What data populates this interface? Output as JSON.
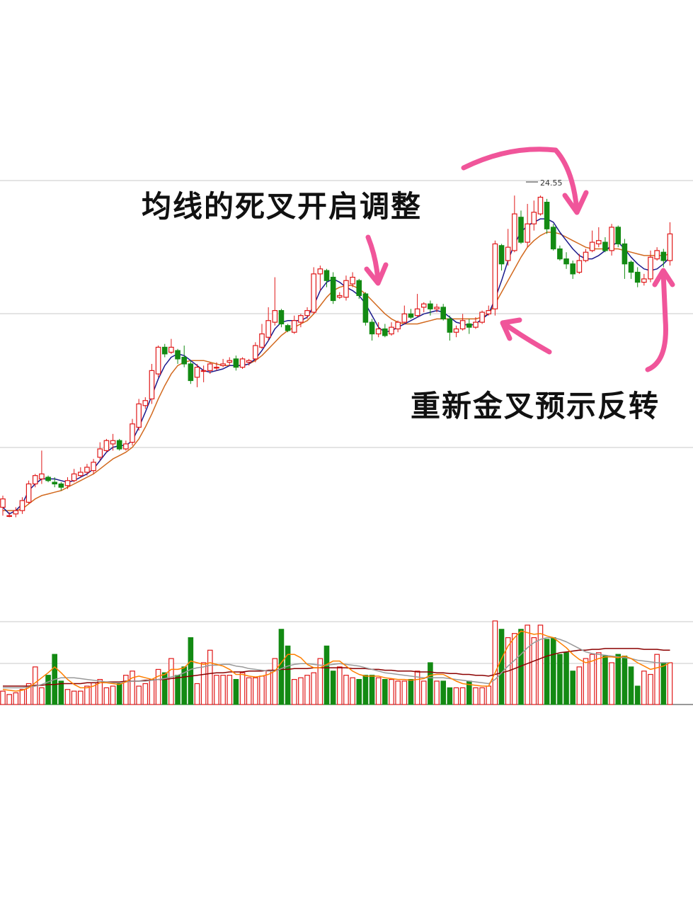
{
  "chart_data": {
    "type": "candlestick",
    "title": "",
    "peak_label": "24.55",
    "grid": true,
    "annotations": {
      "dead_cross": "均线的死叉开启调整",
      "golden_cross": "重新金叉预示反转"
    },
    "colors": {
      "up": "#e01818",
      "down": "#138a13",
      "ma_short": "#1a1a8c",
      "ma_long": "#d2691e",
      "vol_ma_1": "#ff7f00",
      "vol_ma_2": "#999999",
      "vol_ma_3": "#8b0000",
      "annotation_arrow": "#f0559a",
      "grid": "#c8c8c8"
    },
    "price_range": [
      13.0,
      25.0
    ],
    "candles": [
      [
        15.2,
        15.45,
        15.55,
        14.95
      ],
      [
        14.95,
        14.95,
        15.05,
        14.9
      ],
      [
        15.0,
        15.1,
        15.2,
        14.9
      ],
      [
        15.1,
        15.4,
        15.5,
        15.0
      ],
      [
        15.35,
        15.9,
        16.0,
        15.3
      ],
      [
        15.9,
        16.15,
        16.2,
        15.8
      ],
      [
        16.05,
        16.2,
        16.9,
        15.9
      ],
      [
        16.1,
        16.0,
        16.15,
        15.95
      ],
      [
        15.95,
        15.9,
        16.1,
        15.8
      ],
      [
        15.9,
        15.8,
        15.95,
        15.7
      ],
      [
        15.85,
        16.0,
        16.1,
        15.75
      ],
      [
        16.0,
        16.2,
        16.35,
        15.95
      ],
      [
        16.15,
        16.25,
        16.4,
        16.1
      ],
      [
        16.25,
        16.4,
        16.5,
        16.15
      ],
      [
        16.3,
        16.55,
        16.65,
        16.2
      ],
      [
        16.7,
        16.95,
        17.15,
        16.6
      ],
      [
        16.9,
        17.2,
        17.25,
        16.85
      ],
      [
        17.1,
        17.2,
        17.4,
        16.9
      ],
      [
        17.2,
        16.95,
        17.25,
        16.9
      ],
      [
        16.95,
        17.1,
        17.2,
        16.9
      ],
      [
        17.15,
        17.7,
        17.85,
        17.05
      ],
      [
        17.6,
        18.3,
        18.45,
        17.5
      ],
      [
        18.25,
        18.4,
        18.5,
        18.15
      ],
      [
        18.45,
        19.3,
        19.5,
        18.3
      ],
      [
        19.2,
        20.0,
        20.05,
        19.1
      ],
      [
        20.0,
        19.8,
        20.1,
        19.7
      ],
      [
        19.85,
        20.0,
        20.25,
        19.8
      ],
      [
        19.9,
        19.65,
        19.95,
        19.5
      ],
      [
        19.7,
        19.5,
        20.05,
        19.4
      ],
      [
        19.5,
        19.0,
        19.6,
        18.9
      ],
      [
        19.1,
        19.4,
        19.5,
        18.8
      ],
      [
        19.3,
        19.3,
        19.45,
        18.95
      ],
      [
        19.3,
        19.5,
        19.55,
        19.2
      ],
      [
        19.4,
        19.4,
        19.55,
        19.3
      ],
      [
        19.45,
        19.5,
        19.65,
        19.4
      ],
      [
        19.55,
        19.6,
        19.7,
        19.45
      ],
      [
        19.65,
        19.4,
        19.75,
        19.3
      ],
      [
        19.4,
        19.65,
        19.7,
        19.35
      ],
      [
        19.55,
        19.6,
        19.65,
        19.45
      ],
      [
        19.65,
        20.05,
        20.15,
        19.55
      ],
      [
        20.0,
        20.4,
        20.7,
        19.95
      ],
      [
        20.3,
        20.8,
        21.2,
        20.2
      ],
      [
        20.75,
        21.1,
        22.1,
        20.65
      ],
      [
        21.1,
        20.7,
        21.15,
        20.6
      ],
      [
        20.65,
        20.5,
        20.7,
        20.45
      ],
      [
        20.45,
        20.8,
        20.95,
        20.4
      ],
      [
        20.75,
        20.95,
        21.0,
        20.6
      ],
      [
        20.95,
        21.1,
        21.2,
        20.85
      ],
      [
        21.05,
        22.2,
        22.4,
        21.0
      ],
      [
        22.2,
        22.35,
        22.45,
        21.7
      ],
      [
        22.3,
        22.0,
        22.35,
        21.8
      ],
      [
        22.1,
        21.4,
        22.25,
        21.3
      ],
      [
        21.5,
        21.55,
        21.65,
        21.45
      ],
      [
        21.5,
        22.0,
        22.15,
        21.4
      ],
      [
        21.9,
        22.1,
        22.25,
        21.8
      ],
      [
        22.0,
        21.55,
        22.05,
        21.45
      ],
      [
        21.6,
        20.75,
        21.65,
        20.65
      ],
      [
        20.75,
        20.4,
        20.85,
        20.2
      ],
      [
        20.4,
        20.55,
        20.75,
        20.3
      ],
      [
        20.55,
        20.35,
        20.7,
        20.3
      ],
      [
        20.4,
        20.6,
        20.75,
        20.35
      ],
      [
        20.55,
        20.75,
        20.8,
        20.45
      ],
      [
        20.75,
        21.0,
        21.25,
        20.7
      ],
      [
        21.0,
        20.9,
        21.15,
        20.85
      ],
      [
        20.95,
        21.15,
        21.6,
        20.9
      ],
      [
        21.2,
        21.3,
        21.35,
        21.05
      ],
      [
        21.3,
        21.15,
        21.4,
        20.95
      ],
      [
        21.15,
        21.2,
        21.3,
        21.05
      ],
      [
        21.2,
        20.85,
        21.3,
        20.8
      ],
      [
        20.85,
        20.45,
        20.95,
        20.2
      ],
      [
        20.45,
        20.55,
        20.65,
        20.3
      ],
      [
        20.55,
        20.8,
        21.0,
        20.5
      ],
      [
        20.7,
        20.6,
        20.85,
        20.4
      ],
      [
        20.6,
        20.75,
        20.9,
        20.55
      ],
      [
        20.75,
        21.05,
        21.1,
        20.7
      ],
      [
        21.0,
        21.1,
        21.25,
        20.95
      ],
      [
        21.15,
        23.1,
        23.2,
        20.95
      ],
      [
        23.05,
        22.5,
        23.1,
        22.3
      ],
      [
        22.6,
        23.0,
        23.55,
        22.45
      ],
      [
        22.9,
        24.0,
        24.55,
        22.85
      ],
      [
        23.9,
        23.15,
        24.1,
        23.1
      ],
      [
        23.15,
        23.7,
        24.3,
        23.0
      ],
      [
        23.7,
        24.05,
        24.4,
        23.5
      ],
      [
        24.0,
        24.5,
        24.55,
        23.95
      ],
      [
        24.35,
        23.55,
        24.45,
        23.4
      ],
      [
        23.6,
        22.95,
        23.7,
        22.9
      ],
      [
        22.95,
        22.65,
        23.05,
        22.6
      ],
      [
        22.65,
        22.5,
        22.85,
        22.35
      ],
      [
        22.5,
        22.2,
        22.6,
        22.05
      ],
      [
        22.25,
        22.6,
        22.8,
        22.2
      ],
      [
        22.6,
        22.85,
        22.95,
        22.55
      ],
      [
        22.9,
        23.15,
        23.5,
        22.85
      ],
      [
        23.1,
        23.2,
        23.6,
        23.0
      ],
      [
        23.15,
        22.9,
        23.3,
        22.85
      ],
      [
        22.9,
        23.6,
        23.7,
        22.75
      ],
      [
        23.6,
        23.1,
        23.65,
        23.0
      ],
      [
        23.1,
        22.5,
        23.25,
        22.05
      ],
      [
        22.55,
        22.25,
        22.6,
        22.05
      ],
      [
        22.25,
        21.95,
        22.4,
        21.8
      ],
      [
        21.95,
        22.05,
        22.2,
        21.85
      ],
      [
        22.05,
        22.7,
        22.9,
        21.95
      ],
      [
        22.65,
        22.9,
        23.0,
        22.6
      ],
      [
        22.85,
        22.6,
        22.95,
        22.4
      ],
      [
        22.6,
        23.4,
        23.75,
        22.45
      ]
    ],
    "ma_short": [
      15.2,
      15.0,
      15.1,
      15.3,
      15.7,
      15.9,
      16.05,
      16.05,
      16.05,
      16.0,
      15.95,
      16.0,
      16.1,
      16.2,
      16.35,
      16.6,
      16.85,
      17.0,
      17.05,
      17.05,
      17.2,
      17.6,
      18.05,
      18.55,
      19.05,
      19.45,
      19.7,
      19.8,
      19.75,
      19.6,
      19.45,
      19.3,
      19.25,
      19.3,
      19.35,
      19.45,
      19.45,
      19.45,
      19.5,
      19.65,
      19.9,
      20.2,
      20.55,
      20.75,
      20.8,
      20.8,
      20.8,
      20.9,
      21.25,
      21.7,
      21.95,
      22.05,
      21.95,
      21.8,
      21.7,
      21.55,
      21.3,
      20.95,
      20.6,
      20.45,
      20.5,
      20.6,
      20.7,
      20.8,
      20.9,
      21.0,
      21.05,
      21.1,
      21.05,
      20.9,
      20.75,
      20.7,
      20.65,
      20.7,
      20.85,
      21.0,
      21.45,
      22.0,
      22.6,
      23.1,
      23.45,
      23.65,
      23.75,
      23.85,
      23.85,
      23.75,
      23.45,
      23.2,
      22.95,
      22.75,
      22.65,
      22.65,
      22.75,
      22.9,
      23.05,
      23.15,
      22.95,
      22.7,
      22.5,
      22.35,
      22.3,
      22.35,
      22.5,
      22.7
    ],
    "ma_long": [
      15.1,
      15.1,
      15.1,
      15.15,
      15.3,
      15.45,
      15.55,
      15.6,
      15.65,
      15.7,
      15.8,
      15.9,
      16.0,
      16.1,
      16.2,
      16.35,
      16.5,
      16.65,
      16.75,
      16.85,
      17.0,
      17.25,
      17.6,
      18.0,
      18.45,
      18.85,
      19.2,
      19.45,
      19.55,
      19.6,
      19.6,
      19.6,
      19.55,
      19.5,
      19.45,
      19.45,
      19.45,
      19.45,
      19.5,
      19.6,
      19.75,
      19.95,
      20.15,
      20.35,
      20.5,
      20.6,
      20.7,
      20.8,
      21.0,
      21.25,
      21.5,
      21.7,
      21.8,
      21.85,
      21.85,
      21.75,
      21.6,
      21.4,
      21.2,
      21.0,
      20.85,
      20.75,
      20.7,
      20.7,
      20.7,
      20.75,
      20.8,
      20.85,
      20.85,
      20.85,
      20.85,
      20.85,
      20.85,
      20.85,
      20.9,
      21.0,
      21.3,
      21.65,
      22.0,
      22.35,
      22.7,
      23.0,
      23.2,
      23.35,
      23.45,
      23.45,
      23.4,
      23.3,
      23.2,
      23.1,
      23.0,
      22.95,
      22.95,
      22.95,
      22.95,
      22.95,
      22.9,
      22.85,
      22.8,
      22.75,
      22.75,
      22.75,
      22.75,
      22.8
    ],
    "volume_range": [
      0,
      100
    ],
    "volume": [
      16,
      12,
      14,
      18,
      25,
      45,
      20,
      35,
      60,
      28,
      18,
      16,
      16,
      22,
      26,
      30,
      20,
      22,
      25,
      35,
      40,
      22,
      25,
      30,
      42,
      38,
      55,
      35,
      45,
      80,
      25,
      50,
      65,
      35,
      35,
      35,
      30,
      38,
      32,
      32,
      34,
      40,
      55,
      90,
      70,
      30,
      32,
      35,
      38,
      55,
      70,
      40,
      45,
      35,
      32,
      30,
      35,
      35,
      32,
      30,
      30,
      28,
      28,
      30,
      40,
      28,
      50,
      28,
      28,
      20,
      20,
      20,
      28,
      20,
      20,
      22,
      100,
      90,
      80,
      85,
      90,
      95,
      80,
      95,
      78,
      80,
      60,
      62,
      40,
      45,
      55,
      60,
      62,
      58,
      50,
      60,
      58,
      45,
      22,
      40,
      36,
      60,
      50,
      50
    ],
    "vol_ma_1": [
      18,
      17,
      16,
      17,
      20,
      26,
      32,
      38,
      45,
      38,
      30,
      24,
      20,
      20,
      22,
      26,
      26,
      25,
      24,
      27,
      32,
      34,
      32,
      30,
      34,
      36,
      42,
      42,
      44,
      52,
      50,
      48,
      50,
      48,
      46,
      42,
      36,
      36,
      34,
      33,
      34,
      36,
      40,
      50,
      60,
      60,
      56,
      48,
      44,
      44,
      48,
      52,
      52,
      46,
      40,
      36,
      34,
      34,
      34,
      32,
      31,
      30,
      30,
      29,
      30,
      31,
      35,
      36,
      36,
      32,
      28,
      25,
      24,
      23,
      22,
      22,
      38,
      55,
      70,
      80,
      88,
      86,
      84,
      85,
      82,
      80,
      74,
      68,
      60,
      54,
      50,
      52,
      55,
      57,
      57,
      56,
      58,
      55,
      50,
      46,
      42,
      44,
      46,
      50
    ],
    "vol_ma_2": [
      20,
      20,
      20,
      20,
      21,
      22,
      24,
      27,
      30,
      32,
      32,
      32,
      31,
      30,
      29,
      28,
      27,
      26,
      26,
      27,
      28,
      28,
      28,
      29,
      30,
      31,
      33,
      35,
      38,
      42,
      44,
      45,
      47,
      47,
      48,
      48,
      46,
      45,
      43,
      42,
      41,
      40,
      40,
      43,
      46,
      48,
      49,
      49,
      48,
      47,
      47,
      48,
      49,
      48,
      47,
      46,
      44,
      42,
      40,
      38,
      37,
      36,
      35,
      34,
      33,
      32,
      32,
      32,
      32,
      31,
      30,
      29,
      28,
      27,
      26,
      25,
      30,
      38,
      46,
      53,
      60,
      68,
      74,
      78,
      80,
      80,
      78,
      75,
      71,
      67,
      63,
      61,
      60,
      59,
      58,
      57,
      56,
      55,
      53,
      52,
      51,
      50,
      50,
      50
    ],
    "vol_ma_3": [
      22,
      22,
      22,
      22,
      22,
      23,
      23,
      24,
      24,
      25,
      25,
      25,
      25,
      26,
      26,
      26,
      27,
      27,
      27,
      28,
      28,
      28,
      29,
      29,
      30,
      30,
      31,
      32,
      33,
      34,
      35,
      36,
      37,
      38,
      38,
      39,
      39,
      39,
      40,
      40,
      40,
      41,
      41,
      42,
      42,
      43,
      43,
      43,
      44,
      44,
      44,
      44,
      44,
      44,
      43,
      43,
      43,
      42,
      42,
      41,
      41,
      40,
      40,
      40,
      39,
      39,
      39,
      38,
      38,
      37,
      37,
      36,
      36,
      35,
      35,
      34,
      36,
      38,
      40,
      43,
      46,
      49,
      52,
      55,
      58,
      60,
      62,
      63,
      64,
      65,
      65,
      66,
      66,
      67,
      67,
      67,
      67,
      67,
      67,
      66,
      66,
      66,
      65,
      65
    ]
  }
}
